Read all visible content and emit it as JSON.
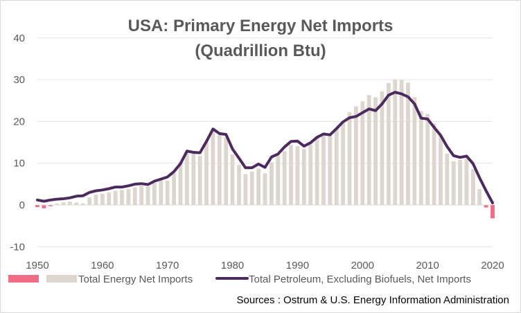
{
  "chart_data": {
    "type": "bar",
    "title": "USA: Primary Energy Net Imports",
    "subtitle": "(Quadrillion Btu)",
    "xlabel": "",
    "ylabel": "",
    "ylim": [
      -10,
      40
    ],
    "y_ticks": [
      "-10",
      "0",
      "10",
      "20",
      "30",
      "40"
    ],
    "x_ticks": [
      "1950",
      "1960",
      "1970",
      "1980",
      "1990",
      "2000",
      "2010",
      "2020"
    ],
    "grid": "horizontal",
    "legend_position": "bottom",
    "source": "Sources : Ostrum & U.S. Energy Information Administration",
    "x": [
      1950,
      1951,
      1952,
      1953,
      1954,
      1955,
      1956,
      1957,
      1958,
      1959,
      1960,
      1961,
      1962,
      1963,
      1964,
      1965,
      1966,
      1967,
      1968,
      1969,
      1970,
      1971,
      1972,
      1973,
      1974,
      1975,
      1976,
      1977,
      1978,
      1979,
      1980,
      1981,
      1982,
      1983,
      1984,
      1985,
      1986,
      1987,
      1988,
      1989,
      1990,
      1991,
      1992,
      1993,
      1994,
      1995,
      1996,
      1997,
      1998,
      1999,
      2000,
      2001,
      2002,
      2003,
      2004,
      2005,
      2006,
      2007,
      2008,
      2009,
      2010,
      2011,
      2012,
      2013,
      2014,
      2015,
      2016,
      2017,
      2018,
      2019,
      2020
    ],
    "series": [
      {
        "name": "Total Energy Net Imports",
        "kind": "bar",
        "color_positive": "#dcd6cf",
        "color_negative": "#f06b85",
        "values": [
          -0.5,
          -0.8,
          -0.3,
          0.3,
          0.6,
          0.8,
          0.6,
          0.4,
          1.8,
          2.5,
          2.7,
          3.0,
          3.4,
          3.6,
          3.8,
          4.2,
          4.6,
          4.4,
          5.3,
          5.9,
          5.8,
          7.6,
          10.2,
          12.6,
          12.5,
          11.8,
          15.2,
          17.8,
          16.8,
          16.2,
          12.1,
          9.6,
          7.4,
          8.0,
          8.7,
          7.6,
          10.2,
          11.9,
          12.9,
          14.4,
          14.1,
          13.4,
          14.5,
          16.4,
          17.3,
          17.1,
          18.3,
          19.6,
          22.2,
          23.6,
          24.8,
          26.3,
          25.8,
          27.2,
          29.2,
          30.1,
          29.9,
          29.3,
          25.8,
          22.5,
          21.8,
          19.5,
          16.5,
          12.3,
          10.5,
          10.8,
          11.2,
          8.6,
          3.8,
          -0.6,
          -3.2
        ]
      },
      {
        "name": "Total Petroleum, Excluding Biofuels, Net Imports",
        "kind": "line",
        "color": "#4b2a5e",
        "values": [
          1.2,
          0.9,
          1.2,
          1.4,
          1.5,
          1.7,
          2.1,
          2.2,
          3.0,
          3.4,
          3.6,
          3.9,
          4.3,
          4.3,
          4.6,
          5.0,
          5.1,
          4.9,
          5.7,
          6.2,
          6.7,
          8.0,
          9.9,
          12.9,
          12.6,
          12.5,
          15.2,
          18.2,
          17.1,
          16.9,
          13.4,
          11.2,
          8.9,
          8.9,
          9.8,
          9.0,
          11.5,
          12.2,
          13.9,
          15.2,
          15.3,
          14.1,
          14.9,
          16.2,
          17.0,
          16.8,
          18.3,
          19.9,
          20.9,
          21.2,
          22.1,
          23.0,
          22.6,
          24.2,
          26.3,
          27.0,
          26.6,
          25.9,
          24.2,
          20.8,
          20.6,
          18.6,
          16.7,
          14.0,
          11.8,
          11.4,
          11.7,
          9.9,
          6.5,
          3.4,
          0.5
        ]
      }
    ]
  }
}
